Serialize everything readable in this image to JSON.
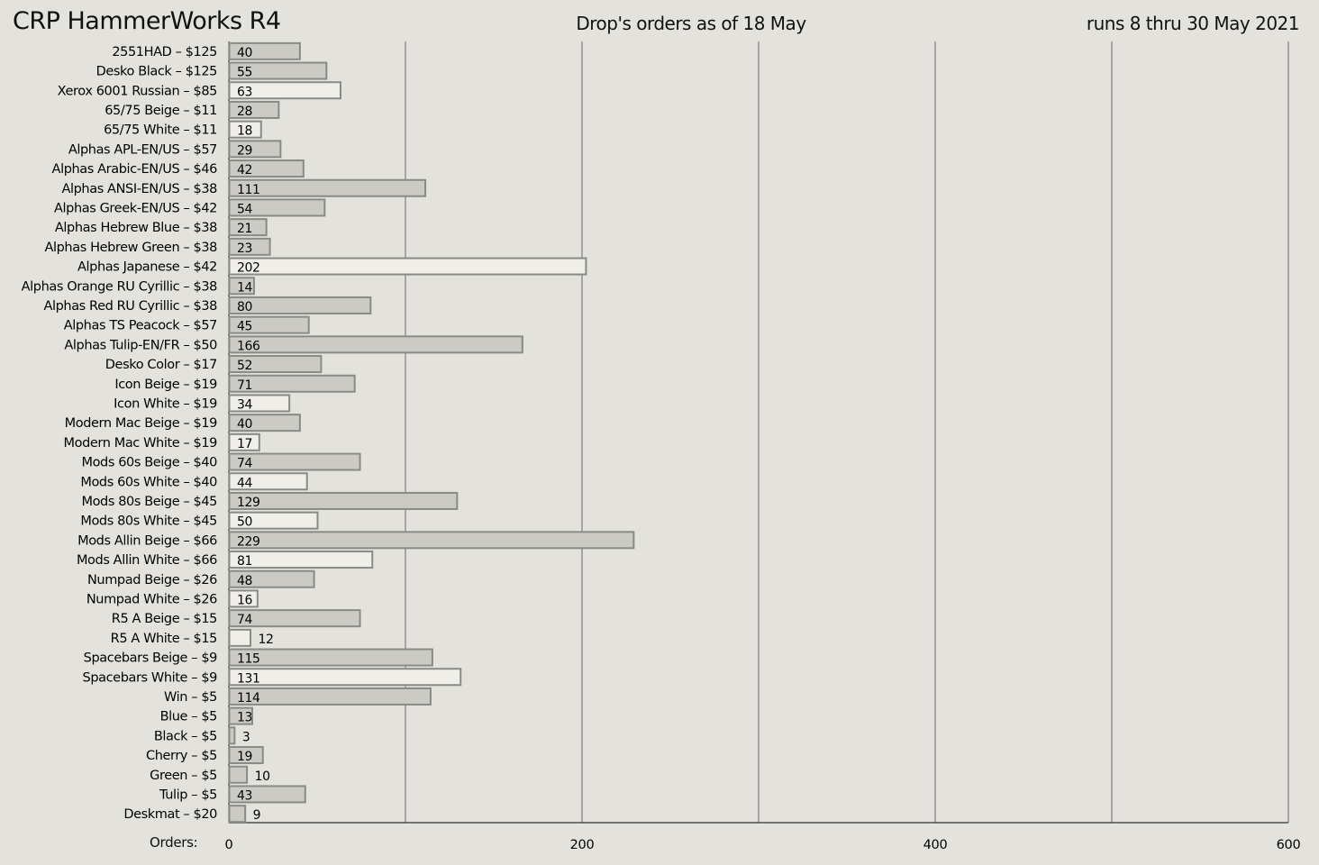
{
  "header": {
    "title": "CRP HammerWorks R4",
    "subtitle": "Drop's orders as of 18 May",
    "run_dates": "runs 8 thru 30 May 2021"
  },
  "axis": {
    "xlabel": "Orders:"
  },
  "colors": {
    "background": "#e3e2dc",
    "bar_gray": "#cbcac4",
    "bar_white": "#efeee9",
    "bar_stroke": "#8a8a86",
    "grid": "#6b6b6b"
  },
  "chart_data": {
    "type": "bar",
    "orientation": "horizontal",
    "xlim": [
      0,
      600
    ],
    "x_ticks": [
      0,
      200,
      400,
      600
    ],
    "gridlines": [
      0,
      100,
      200,
      300,
      400,
      500,
      600
    ],
    "grid": true,
    "categories": [
      "2551HAD – $125",
      "Desko Black – $125",
      "Xerox 6001 Russian – $85",
      "65/75 Beige – $11",
      "65/75 White – $11",
      "Alphas APL-EN/US – $57",
      "Alphas Arabic-EN/US – $46",
      "Alphas ANSI-EN/US – $38",
      "Alphas Greek-EN/US – $42",
      "Alphas Hebrew Blue – $38",
      "Alphas Hebrew Green – $38",
      "Alphas Japanese – $42",
      "Alphas Orange RU Cyrillic – $38",
      "Alphas Red RU Cyrillic – $38",
      "Alphas TS Peacock – $57",
      "Alphas Tulip-EN/FR – $50",
      "Desko Color – $17",
      "Icon Beige – $19",
      "Icon White – $19",
      "Modern Mac Beige – $19",
      "Modern Mac White – $19",
      "Mods 60s Beige – $40",
      "Mods 60s White – $40",
      "Mods 80s Beige – $45",
      "Mods 80s White – $45",
      "Mods Allin Beige – $66",
      "Mods Allin White – $66",
      "Numpad Beige – $26",
      "Numpad White – $26",
      "R5 A Beige – $15",
      "R5 A White – $15",
      "Spacebars Beige – $9",
      "Spacebars White – $9",
      "Win – $5",
      "Blue – $5",
      "Black – $5",
      "Cherry – $5",
      "Green – $5",
      "Tulip – $5",
      "Deskmat – $20"
    ],
    "values": [
      40,
      55,
      63,
      28,
      18,
      29,
      42,
      111,
      54,
      21,
      23,
      202,
      14,
      80,
      45,
      166,
      52,
      71,
      34,
      40,
      17,
      74,
      44,
      129,
      50,
      229,
      81,
      48,
      16,
      74,
      12,
      115,
      131,
      114,
      13,
      3,
      19,
      10,
      43,
      9
    ],
    "bar_colors": [
      "gray",
      "gray",
      "white",
      "gray",
      "white",
      "gray",
      "gray",
      "gray",
      "gray",
      "gray",
      "gray",
      "white",
      "gray",
      "gray",
      "gray",
      "gray",
      "gray",
      "gray",
      "white",
      "gray",
      "white",
      "gray",
      "white",
      "gray",
      "white",
      "gray",
      "white",
      "gray",
      "white",
      "gray",
      "white",
      "gray",
      "white",
      "gray",
      "gray",
      "gray",
      "gray",
      "gray",
      "gray",
      "gray"
    ]
  }
}
